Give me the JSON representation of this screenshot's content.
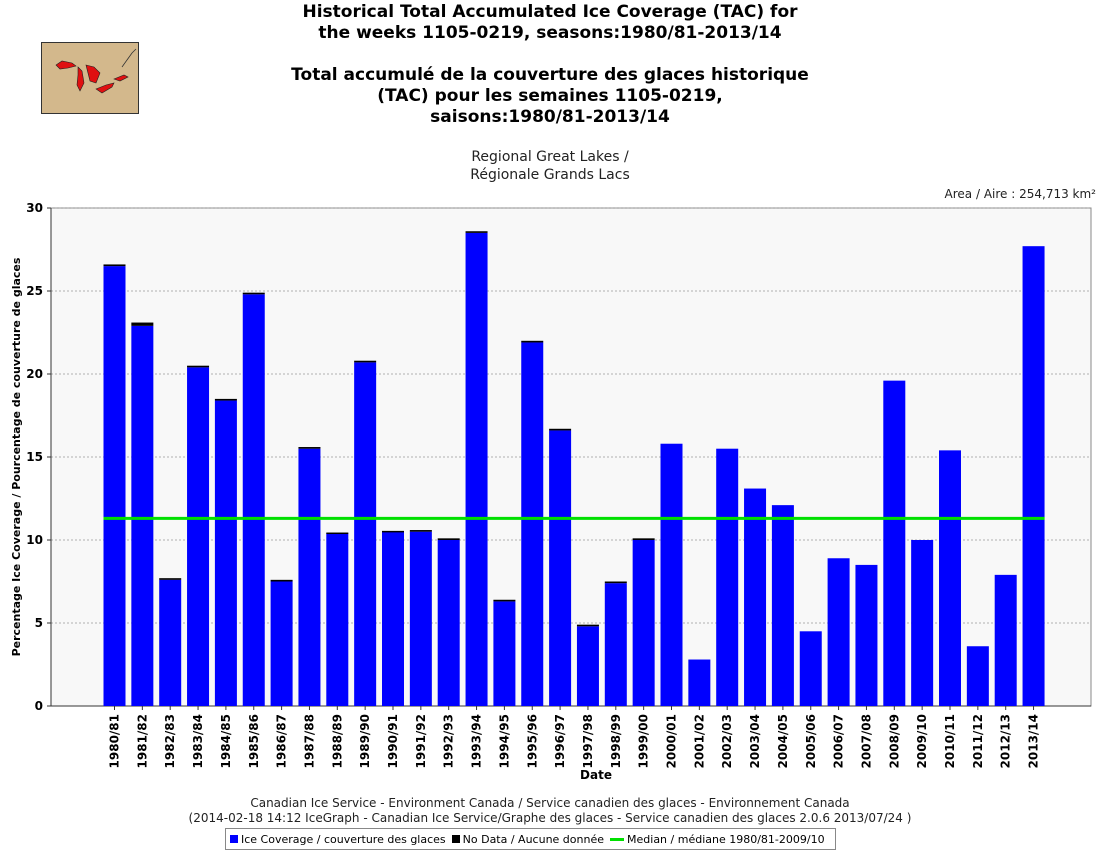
{
  "header": {
    "title_en_line1": "Historical Total Accumulated Ice Coverage (TAC) for",
    "title_en_line2": "the weeks 1105-0219, seasons:1980/81-2013/14",
    "title_fr_line1": "Total accumulé de la couverture des glaces historique",
    "title_fr_line2": "(TAC) pour les semaines 1105-0219,",
    "title_fr_line3": "saisons:1980/81-2013/14",
    "subtitle_line1": "Regional Great Lakes /",
    "subtitle_line2": "Régionale Grands Lacs",
    "area": "Area / Aire : 254,713 km²"
  },
  "footer": {
    "line1": "Canadian Ice Service - Environment Canada / Service canadien des glaces - Environnement Canada",
    "line2": "(2014-02-18 14:12 IceGraph - Canadian Ice Service/Graphe des glaces - Service canadien des glaces 2.0.6 2013/07/24 )"
  },
  "legend": {
    "ice": "Ice Coverage / couverture des glaces",
    "nodata": "No Data / Aucune donnée",
    "median": "Median / médiane 1980/81-2009/10"
  },
  "colors": {
    "ice": "#0000ff",
    "nodata": "#000000",
    "median": "#00e000",
    "plot_bg": "#f8f8f8",
    "grid": "#999999"
  },
  "chart_data": {
    "type": "bar",
    "title": "Historical Total Accumulated Ice Coverage (TAC) for the weeks 1105-0219, seasons:1980/81-2013/14",
    "xlabel": "Date",
    "ylabel": "Percentage Ice Coverage / Pourcentage de couverture de glaces",
    "ylim": [
      0,
      30
    ],
    "yticks": [
      0,
      5,
      10,
      15,
      20,
      25,
      30
    ],
    "median": 11.3,
    "categories": [
      "1980/81",
      "1981/82",
      "1982/83",
      "1983/84",
      "1984/85",
      "1985/86",
      "1986/87",
      "1987/88",
      "1988/89",
      "1989/90",
      "1990/91",
      "1991/92",
      "1992/93",
      "1993/94",
      "1994/95",
      "1995/96",
      "1996/97",
      "1997/98",
      "1998/99",
      "1999/00",
      "2000/01",
      "2001/02",
      "2002/03",
      "2003/04",
      "2004/05",
      "2005/06",
      "2006/07",
      "2007/08",
      "2008/09",
      "2009/10",
      "2010/11",
      "2011/12",
      "2012/13",
      "2013/14"
    ],
    "series": [
      {
        "name": "Ice Coverage / couverture des glaces",
        "values": [
          26.5,
          22.9,
          7.6,
          20.4,
          18.4,
          24.8,
          7.5,
          15.5,
          10.4,
          20.7,
          10.5,
          10.5,
          10.0,
          28.5,
          6.3,
          21.9,
          16.6,
          4.8,
          7.4,
          10.0,
          15.8,
          2.8,
          15.5,
          13.1,
          12.1,
          4.5,
          8.9,
          8.5,
          19.6,
          10.0,
          15.4,
          3.6,
          7.9,
          27.7
        ]
      },
      {
        "name": "No Data / Aucune donnée",
        "values": [
          0.1,
          0.2,
          0.1,
          0.1,
          0.1,
          0.1,
          0.1,
          0.1,
          0.05,
          0.1,
          0.05,
          0.1,
          0.1,
          0.1,
          0.1,
          0.1,
          0.1,
          0.1,
          0.1,
          0.1,
          0,
          0,
          0,
          0,
          0,
          0,
          0,
          0,
          0,
          0,
          0,
          0,
          0,
          0
        ]
      }
    ]
  }
}
